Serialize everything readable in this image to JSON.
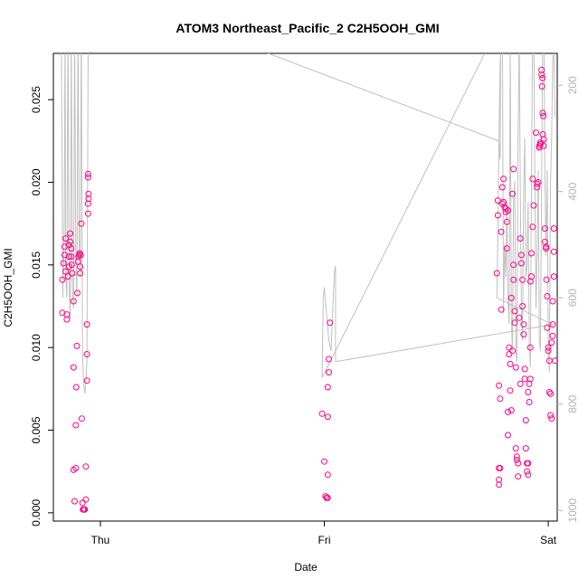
{
  "chart_data": {
    "type": "scatter",
    "title": "ATOM3 Northeast_Pacific_2 C2H5OOH_GMI",
    "xlabel": "Date",
    "ylabel": "C2H5OOH_GMI",
    "x_ticks": [
      "Thu",
      "Fri",
      "Sat"
    ],
    "xlim": [
      -0.21,
      2.04
    ],
    "ylim": [
      -0.0005,
      0.0278
    ],
    "y_ticks": [
      0.0,
      0.005,
      0.01,
      0.015,
      0.02,
      0.025
    ],
    "y_tick_labels": [
      "0.000",
      "0.005",
      "0.010",
      "0.015",
      "0.020",
      "0.025"
    ],
    "right_axis": {
      "ticks": [
        200,
        400,
        600,
        800,
        1000
      ],
      "range": [
        1020,
        140
      ],
      "reversed": true,
      "color": "#b3b3b3"
    },
    "grid": false,
    "point_color": "#ff0080",
    "line_color": "#c0c0c0",
    "series": [
      {
        "marker": "circle",
        "points": [
          [
            -0.17,
            0.0121
          ],
          [
            -0.17,
            0.0141
          ],
          [
            -0.165,
            0.0151
          ],
          [
            -0.16,
            0.0156
          ],
          [
            -0.155,
            0.0166
          ],
          [
            -0.16,
            0.0161
          ],
          [
            -0.155,
            0.0146
          ],
          [
            -0.15,
            0.012
          ],
          [
            -0.15,
            0.0117
          ],
          [
            -0.145,
            0.0143
          ],
          [
            -0.14,
            0.0149
          ],
          [
            -0.14,
            0.0155
          ],
          [
            -0.14,
            0.0162
          ],
          [
            -0.135,
            0.0169
          ],
          [
            -0.135,
            0.0164
          ],
          [
            -0.13,
            0.016
          ],
          [
            -0.13,
            0.0155
          ],
          [
            -0.128,
            0.015
          ],
          [
            -0.125,
            0.0145
          ],
          [
            -0.12,
            0.0128
          ],
          [
            -0.12,
            0.0088
          ],
          [
            -0.12,
            0.0026
          ],
          [
            -0.115,
            0.0007
          ],
          [
            -0.11,
            0.0027
          ],
          [
            -0.11,
            0.0053
          ],
          [
            -0.108,
            0.0076
          ],
          [
            -0.105,
            0.0101
          ],
          [
            -0.103,
            0.0133
          ],
          [
            -0.1,
            0.0152
          ],
          [
            -0.098,
            0.0155
          ],
          [
            -0.095,
            0.0156
          ],
          [
            -0.093,
            0.0157
          ],
          [
            -0.09,
            0.0149
          ],
          [
            -0.09,
            0.0145
          ],
          [
            -0.088,
            0.0156
          ],
          [
            -0.085,
            0.0175
          ],
          [
            -0.083,
            0.0057
          ],
          [
            -0.08,
            0.0006
          ],
          [
            -0.078,
            0.0002
          ],
          [
            -0.075,
            0.0002
          ],
          [
            -0.072,
            0.0002
          ],
          [
            -0.07,
            0.0002
          ],
          [
            -0.065,
            0.0008
          ],
          [
            -0.065,
            0.0028
          ],
          [
            -0.06,
            0.008
          ],
          [
            -0.06,
            0.0096
          ],
          [
            -0.06,
            0.0114
          ],
          [
            -0.055,
            0.0181
          ],
          [
            -0.055,
            0.0187
          ],
          [
            -0.053,
            0.019
          ],
          [
            -0.053,
            0.0193
          ],
          [
            -0.055,
            0.0203
          ],
          [
            -0.055,
            0.0205
          ],
          [
            0.99,
            0.006
          ],
          [
            1.0,
            0.0031
          ],
          [
            1.005,
            0.001
          ],
          [
            1.01,
            0.0009
          ],
          [
            1.015,
            0.0009
          ],
          [
            1.015,
            0.0023
          ],
          [
            1.015,
            0.0058
          ],
          [
            1.015,
            0.0076
          ],
          [
            1.02,
            0.0085
          ],
          [
            1.02,
            0.0093
          ],
          [
            1.025,
            0.0115
          ],
          [
            1.77,
            0.0145
          ],
          [
            1.775,
            0.018
          ],
          [
            1.775,
            0.0189
          ],
          [
            1.78,
            0.0077
          ],
          [
            1.78,
            0.0027
          ],
          [
            1.78,
            0.002
          ],
          [
            1.78,
            0.0017
          ],
          [
            1.785,
            0.0027
          ],
          [
            1.785,
            0.0069
          ],
          [
            1.79,
            0.0123
          ],
          [
            1.79,
            0.017
          ],
          [
            1.795,
            0.0187
          ],
          [
            1.795,
            0.0197
          ],
          [
            1.8,
            0.0202
          ],
          [
            1.8,
            0.0188
          ],
          [
            1.805,
            0.0185
          ],
          [
            1.81,
            0.0184
          ],
          [
            1.81,
            0.0182
          ],
          [
            1.815,
            0.0176
          ],
          [
            1.815,
            0.016
          ],
          [
            1.82,
            0.0183
          ],
          [
            1.82,
            0.0061
          ],
          [
            1.82,
            0.0047
          ],
          [
            1.825,
            0.01
          ],
          [
            1.825,
            0.0096
          ],
          [
            1.83,
            0.009
          ],
          [
            1.83,
            0.0074
          ],
          [
            1.835,
            0.0062
          ],
          [
            1.835,
            0.013
          ],
          [
            1.84,
            0.0098
          ],
          [
            1.84,
            0.0193
          ],
          [
            1.845,
            0.0208
          ],
          [
            1.845,
            0.015
          ],
          [
            1.845,
            0.0141
          ],
          [
            1.85,
            0.0122
          ],
          [
            1.85,
            0.0115
          ],
          [
            1.855,
            0.0088
          ],
          [
            1.855,
            0.0039
          ],
          [
            1.86,
            0.0034
          ],
          [
            1.86,
            0.0032
          ],
          [
            1.865,
            0.003
          ],
          [
            1.865,
            0.0022
          ],
          [
            1.87,
            0.0118
          ],
          [
            1.875,
            0.0078
          ],
          [
            1.875,
            0.0166
          ],
          [
            1.88,
            0.0156
          ],
          [
            1.88,
            0.0151
          ],
          [
            1.885,
            0.0141
          ],
          [
            1.885,
            0.0125
          ],
          [
            1.89,
            0.0114
          ],
          [
            1.89,
            0.0108
          ],
          [
            1.895,
            0.0087
          ],
          [
            1.895,
            0.0081
          ],
          [
            1.9,
            0.0056
          ],
          [
            1.9,
            0.0039
          ],
          [
            1.905,
            0.003
          ],
          [
            1.905,
            0.0025
          ],
          [
            1.91,
            0.0023
          ],
          [
            1.91,
            0.003
          ],
          [
            1.91,
            0.0073
          ],
          [
            1.915,
            0.0078
          ],
          [
            1.915,
            0.0067
          ],
          [
            1.92,
            0.0081
          ],
          [
            1.92,
            0.01
          ],
          [
            1.92,
            0.014
          ],
          [
            1.925,
            0.0143
          ],
          [
            1.925,
            0.0157
          ],
          [
            1.93,
            0.0173
          ],
          [
            1.93,
            0.0202
          ],
          [
            1.935,
            0.0186
          ],
          [
            1.945,
            0.023
          ],
          [
            1.95,
            0.0197
          ],
          [
            1.95,
            0.0199
          ],
          [
            1.955,
            0.02
          ],
          [
            1.96,
            0.0221
          ],
          [
            1.96,
            0.0222
          ],
          [
            1.965,
            0.0223
          ],
          [
            1.965,
            0.0224
          ],
          [
            1.97,
            0.0268
          ],
          [
            1.97,
            0.0265
          ],
          [
            1.972,
            0.0258
          ],
          [
            1.974,
            0.0263
          ],
          [
            1.975,
            0.0242
          ],
          [
            1.978,
            0.024
          ],
          [
            1.975,
            0.0229
          ],
          [
            1.98,
            0.0226
          ],
          [
            1.98,
            0.0222
          ],
          [
            1.985,
            0.0172
          ],
          [
            1.985,
            0.0164
          ],
          [
            1.99,
            0.0161
          ],
          [
            1.99,
            0.016
          ],
          [
            1.992,
            0.0141
          ],
          [
            1.995,
            0.0131
          ],
          [
            1.995,
            0.0112
          ],
          [
            2.0,
            0.01
          ],
          [
            2.0,
            0.0098
          ],
          [
            2.005,
            0.0092
          ],
          [
            2.005,
            0.0073
          ],
          [
            2.01,
            0.0072
          ],
          [
            2.01,
            0.0059
          ],
          [
            2.015,
            0.0057
          ],
          [
            2.015,
            0.0103
          ],
          [
            2.02,
            0.0107
          ],
          [
            2.02,
            0.0114
          ],
          [
            2.02,
            0.0128
          ],
          [
            2.025,
            0.0143
          ],
          [
            2.025,
            0.0158
          ],
          [
            2.025,
            0.0172
          ],
          [
            2.03,
            0.0092
          ]
        ]
      }
    ],
    "secondary_series": {
      "name": "",
      "axis": "right",
      "line": [
        [
          -0.175,
          60
        ],
        [
          -0.168,
          600
        ],
        [
          -0.162,
          480
        ],
        [
          -0.158,
          100
        ],
        [
          -0.155,
          560
        ],
        [
          -0.15,
          600
        ],
        [
          -0.145,
          80
        ],
        [
          -0.14,
          570
        ],
        [
          -0.135,
          640
        ],
        [
          -0.13,
          100
        ],
        [
          -0.125,
          580
        ],
        [
          -0.12,
          620
        ],
        [
          -0.115,
          80
        ],
        [
          -0.11,
          520
        ],
        [
          -0.105,
          600
        ],
        [
          -0.1,
          90
        ],
        [
          -0.095,
          500
        ],
        [
          -0.09,
          560
        ],
        [
          -0.085,
          80
        ],
        [
          -0.08,
          700
        ],
        [
          -0.075,
          760
        ],
        [
          -0.07,
          780
        ],
        [
          -0.065,
          760
        ],
        [
          -0.06,
          720
        ],
        [
          -0.055,
          140
        ],
        [
          -0.05,
          90
        ],
        [
          0.5,
          100
        ],
        [
          1.78,
          305
        ],
        [
          1.785,
          340
        ],
        [
          1.788,
          80
        ],
        [
          0.99,
          750
        ],
        [
          0.995,
          600
        ],
        [
          1.0,
          580
        ],
        [
          1.02,
          680
        ],
        [
          1.03,
          700
        ],
        [
          1.04,
          600
        ],
        [
          1.045,
          550
        ],
        [
          1.05,
          540
        ],
        [
          1.05,
          720
        ],
        [
          2.02,
          650
        ],
        [
          1.77,
          600
        ],
        [
          1.775,
          480
        ],
        [
          1.78,
          300
        ],
        [
          1.785,
          160
        ],
        [
          1.79,
          100
        ],
        [
          1.795,
          60
        ],
        [
          1.8,
          630
        ],
        [
          1.805,
          500
        ],
        [
          1.81,
          560
        ],
        [
          1.815,
          420
        ],
        [
          1.82,
          600
        ],
        [
          1.825,
          650
        ],
        [
          1.83,
          120
        ],
        [
          1.835,
          640
        ],
        [
          1.84,
          700
        ],
        [
          1.845,
          420
        ],
        [
          1.85,
          380
        ],
        [
          1.855,
          700
        ],
        [
          1.86,
          720
        ],
        [
          1.865,
          300
        ],
        [
          1.87,
          100
        ],
        [
          1.875,
          400
        ],
        [
          1.88,
          620
        ],
        [
          1.885,
          680
        ],
        [
          1.89,
          400
        ],
        [
          1.895,
          300
        ],
        [
          1.9,
          560
        ],
        [
          1.905,
          540
        ],
        [
          1.91,
          420
        ],
        [
          1.915,
          690
        ],
        [
          1.92,
          730
        ],
        [
          1.925,
          380
        ],
        [
          1.93,
          100
        ],
        [
          1.935,
          60
        ],
        [
          1.94,
          380
        ],
        [
          1.945,
          620
        ],
        [
          1.95,
          520
        ],
        [
          1.955,
          360
        ],
        [
          1.96,
          680
        ],
        [
          1.965,
          700
        ],
        [
          1.97,
          400
        ],
        [
          1.975,
          100
        ],
        [
          1.98,
          60
        ],
        [
          1.985,
          380
        ],
        [
          1.99,
          520
        ],
        [
          1.995,
          360
        ],
        [
          2.0,
          700
        ],
        [
          2.005,
          740
        ],
        [
          2.01,
          380
        ],
        [
          2.015,
          300
        ],
        [
          2.02,
          150
        ],
        [
          2.025,
          140
        ],
        [
          2.03,
          260
        ]
      ]
    }
  }
}
